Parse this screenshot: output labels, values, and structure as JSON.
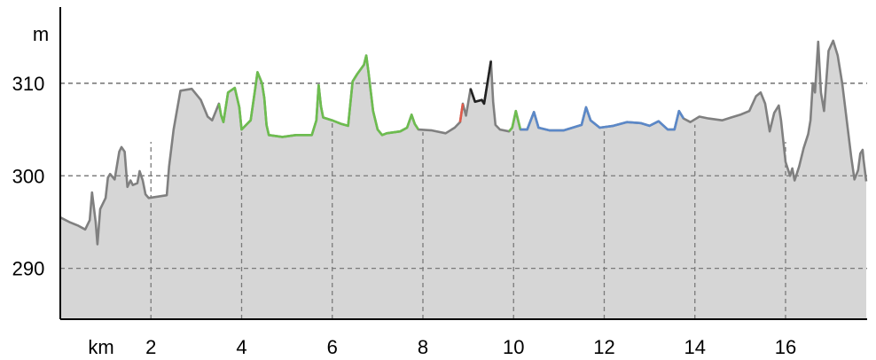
{
  "chart_data": {
    "type": "area",
    "title": "",
    "xlabel": "km",
    "ylabel": "m",
    "xlim": [
      0,
      17.8
    ],
    "ylim": [
      284.5,
      319
    ],
    "grid": true,
    "x_ticks": [
      2,
      4,
      6,
      8,
      10,
      12,
      14,
      16
    ],
    "y_ticks": [
      290,
      300,
      310
    ],
    "x_tick_labels": [
      "2",
      "4",
      "6",
      "8",
      "10",
      "12",
      "14",
      "16"
    ],
    "y_tick_labels": [
      "290",
      "300",
      "310"
    ],
    "colors": {
      "fill": "#d6d6d6",
      "default_line": "#808080",
      "grid": "#7a7a7a",
      "axis": "#000000"
    },
    "profile": [
      [
        0.0,
        295.5
      ],
      [
        0.2,
        295.0
      ],
      [
        0.4,
        294.6
      ],
      [
        0.55,
        294.2
      ],
      [
        0.65,
        295.2
      ],
      [
        0.7,
        298.2
      ],
      [
        0.78,
        295.0
      ],
      [
        0.82,
        292.6
      ],
      [
        0.88,
        296.4
      ],
      [
        1.0,
        297.6
      ],
      [
        1.05,
        299.8
      ],
      [
        1.1,
        300.2
      ],
      [
        1.2,
        299.6
      ],
      [
        1.3,
        302.6
      ],
      [
        1.35,
        303.1
      ],
      [
        1.42,
        302.6
      ],
      [
        1.48,
        298.8
      ],
      [
        1.55,
        299.5
      ],
      [
        1.6,
        299.0
      ],
      [
        1.7,
        299.2
      ],
      [
        1.75,
        300.5
      ],
      [
        1.82,
        299.5
      ],
      [
        1.88,
        298.0
      ],
      [
        1.95,
        297.6
      ],
      [
        2.35,
        297.9
      ],
      [
        2.4,
        301.0
      ],
      [
        2.5,
        305.0
      ],
      [
        2.65,
        309.2
      ],
      [
        2.9,
        309.4
      ],
      [
        3.1,
        308.2
      ],
      [
        3.25,
        306.4
      ],
      [
        3.35,
        306.0
      ],
      [
        3.5,
        307.8
      ],
      [
        3.55,
        306.5
      ],
      [
        3.6,
        305.8
      ],
      [
        3.7,
        309.0
      ],
      [
        3.85,
        309.5
      ],
      [
        3.95,
        307.4
      ],
      [
        4.0,
        305.0
      ],
      [
        4.1,
        305.5
      ],
      [
        4.2,
        306.0
      ],
      [
        4.3,
        309.4
      ],
      [
        4.35,
        311.2
      ],
      [
        4.45,
        310.0
      ],
      [
        4.5,
        308.4
      ],
      [
        4.55,
        305.5
      ],
      [
        4.6,
        304.4
      ],
      [
        4.9,
        304.2
      ],
      [
        5.2,
        304.4
      ],
      [
        5.55,
        304.4
      ],
      [
        5.65,
        306.0
      ],
      [
        5.7,
        309.8
      ],
      [
        5.75,
        307.5
      ],
      [
        5.8,
        306.3
      ],
      [
        6.0,
        306.0
      ],
      [
        6.2,
        305.6
      ],
      [
        6.35,
        305.4
      ],
      [
        6.45,
        310.2
      ],
      [
        6.55,
        311.0
      ],
      [
        6.7,
        312.0
      ],
      [
        6.75,
        313.0
      ],
      [
        6.8,
        311.2
      ],
      [
        6.9,
        307.0
      ],
      [
        7.0,
        305.0
      ],
      [
        7.1,
        304.4
      ],
      [
        7.2,
        304.6
      ],
      [
        7.5,
        304.8
      ],
      [
        7.65,
        305.2
      ],
      [
        7.75,
        306.6
      ],
      [
        7.82,
        305.6
      ],
      [
        7.9,
        305.0
      ],
      [
        8.2,
        304.9
      ],
      [
        8.5,
        304.6
      ],
      [
        8.7,
        305.2
      ],
      [
        8.82,
        305.8
      ],
      [
        8.88,
        307.8
      ],
      [
        8.95,
        306.5
      ],
      [
        9.05,
        309.4
      ],
      [
        9.15,
        308.0
      ],
      [
        9.3,
        308.2
      ],
      [
        9.35,
        307.8
      ],
      [
        9.5,
        312.4
      ],
      [
        9.55,
        308.0
      ],
      [
        9.6,
        305.5
      ],
      [
        9.7,
        305.0
      ],
      [
        9.9,
        304.8
      ],
      [
        9.97,
        305.2
      ],
      [
        10.05,
        307.0
      ],
      [
        10.15,
        305.0
      ],
      [
        10.3,
        305.0
      ],
      [
        10.45,
        306.9
      ],
      [
        10.55,
        305.2
      ],
      [
        10.8,
        304.9
      ],
      [
        11.1,
        304.9
      ],
      [
        11.3,
        305.2
      ],
      [
        11.5,
        305.5
      ],
      [
        11.6,
        307.4
      ],
      [
        11.7,
        306.0
      ],
      [
        11.9,
        305.2
      ],
      [
        12.2,
        305.4
      ],
      [
        12.5,
        305.8
      ],
      [
        12.8,
        305.7
      ],
      [
        13.0,
        305.4
      ],
      [
        13.2,
        305.9
      ],
      [
        13.4,
        305.0
      ],
      [
        13.55,
        305.0
      ],
      [
        13.65,
        307.0
      ],
      [
        13.75,
        306.2
      ],
      [
        13.9,
        305.8
      ],
      [
        14.1,
        306.4
      ],
      [
        14.3,
        306.2
      ],
      [
        14.6,
        306.0
      ],
      [
        14.8,
        306.3
      ],
      [
        15.0,
        306.6
      ],
      [
        15.2,
        307.0
      ],
      [
        15.35,
        308.6
      ],
      [
        15.45,
        309.0
      ],
      [
        15.55,
        307.8
      ],
      [
        15.65,
        304.8
      ],
      [
        15.75,
        306.8
      ],
      [
        15.85,
        307.6
      ],
      [
        15.9,
        306.0
      ],
      [
        16.0,
        301.5
      ],
      [
        16.1,
        300.0
      ],
      [
        16.15,
        300.8
      ],
      [
        16.2,
        299.5
      ],
      [
        16.3,
        301.0
      ],
      [
        16.4,
        303.0
      ],
      [
        16.5,
        304.5
      ],
      [
        16.55,
        306.0
      ],
      [
        16.6,
        310.0
      ],
      [
        16.65,
        309.0
      ],
      [
        16.72,
        314.5
      ],
      [
        16.78,
        309.0
      ],
      [
        16.85,
        307.0
      ],
      [
        16.95,
        313.5
      ],
      [
        17.05,
        314.6
      ],
      [
        17.15,
        313.0
      ],
      [
        17.25,
        310.0
      ],
      [
        17.35,
        306.0
      ],
      [
        17.45,
        302.0
      ],
      [
        17.52,
        299.6
      ],
      [
        17.6,
        300.6
      ],
      [
        17.65,
        302.4
      ],
      [
        17.7,
        302.8
      ],
      [
        17.72,
        301.8
      ],
      [
        17.78,
        299.4
      ]
    ],
    "series": [
      {
        "color": "#6dbd4f",
        "x_range": [
          3.5,
          8.0
        ]
      },
      {
        "color": "#6dbd4f",
        "x_range": [
          9.75,
          10.15
        ]
      },
      {
        "color": "#e05a4a",
        "x_range": [
          8.82,
          8.92
        ]
      },
      {
        "color": "#222222",
        "x_range": [
          9.05,
          9.5
        ]
      },
      {
        "color": "#5b88c8",
        "x_range": [
          10.15,
          13.85
        ]
      }
    ]
  }
}
